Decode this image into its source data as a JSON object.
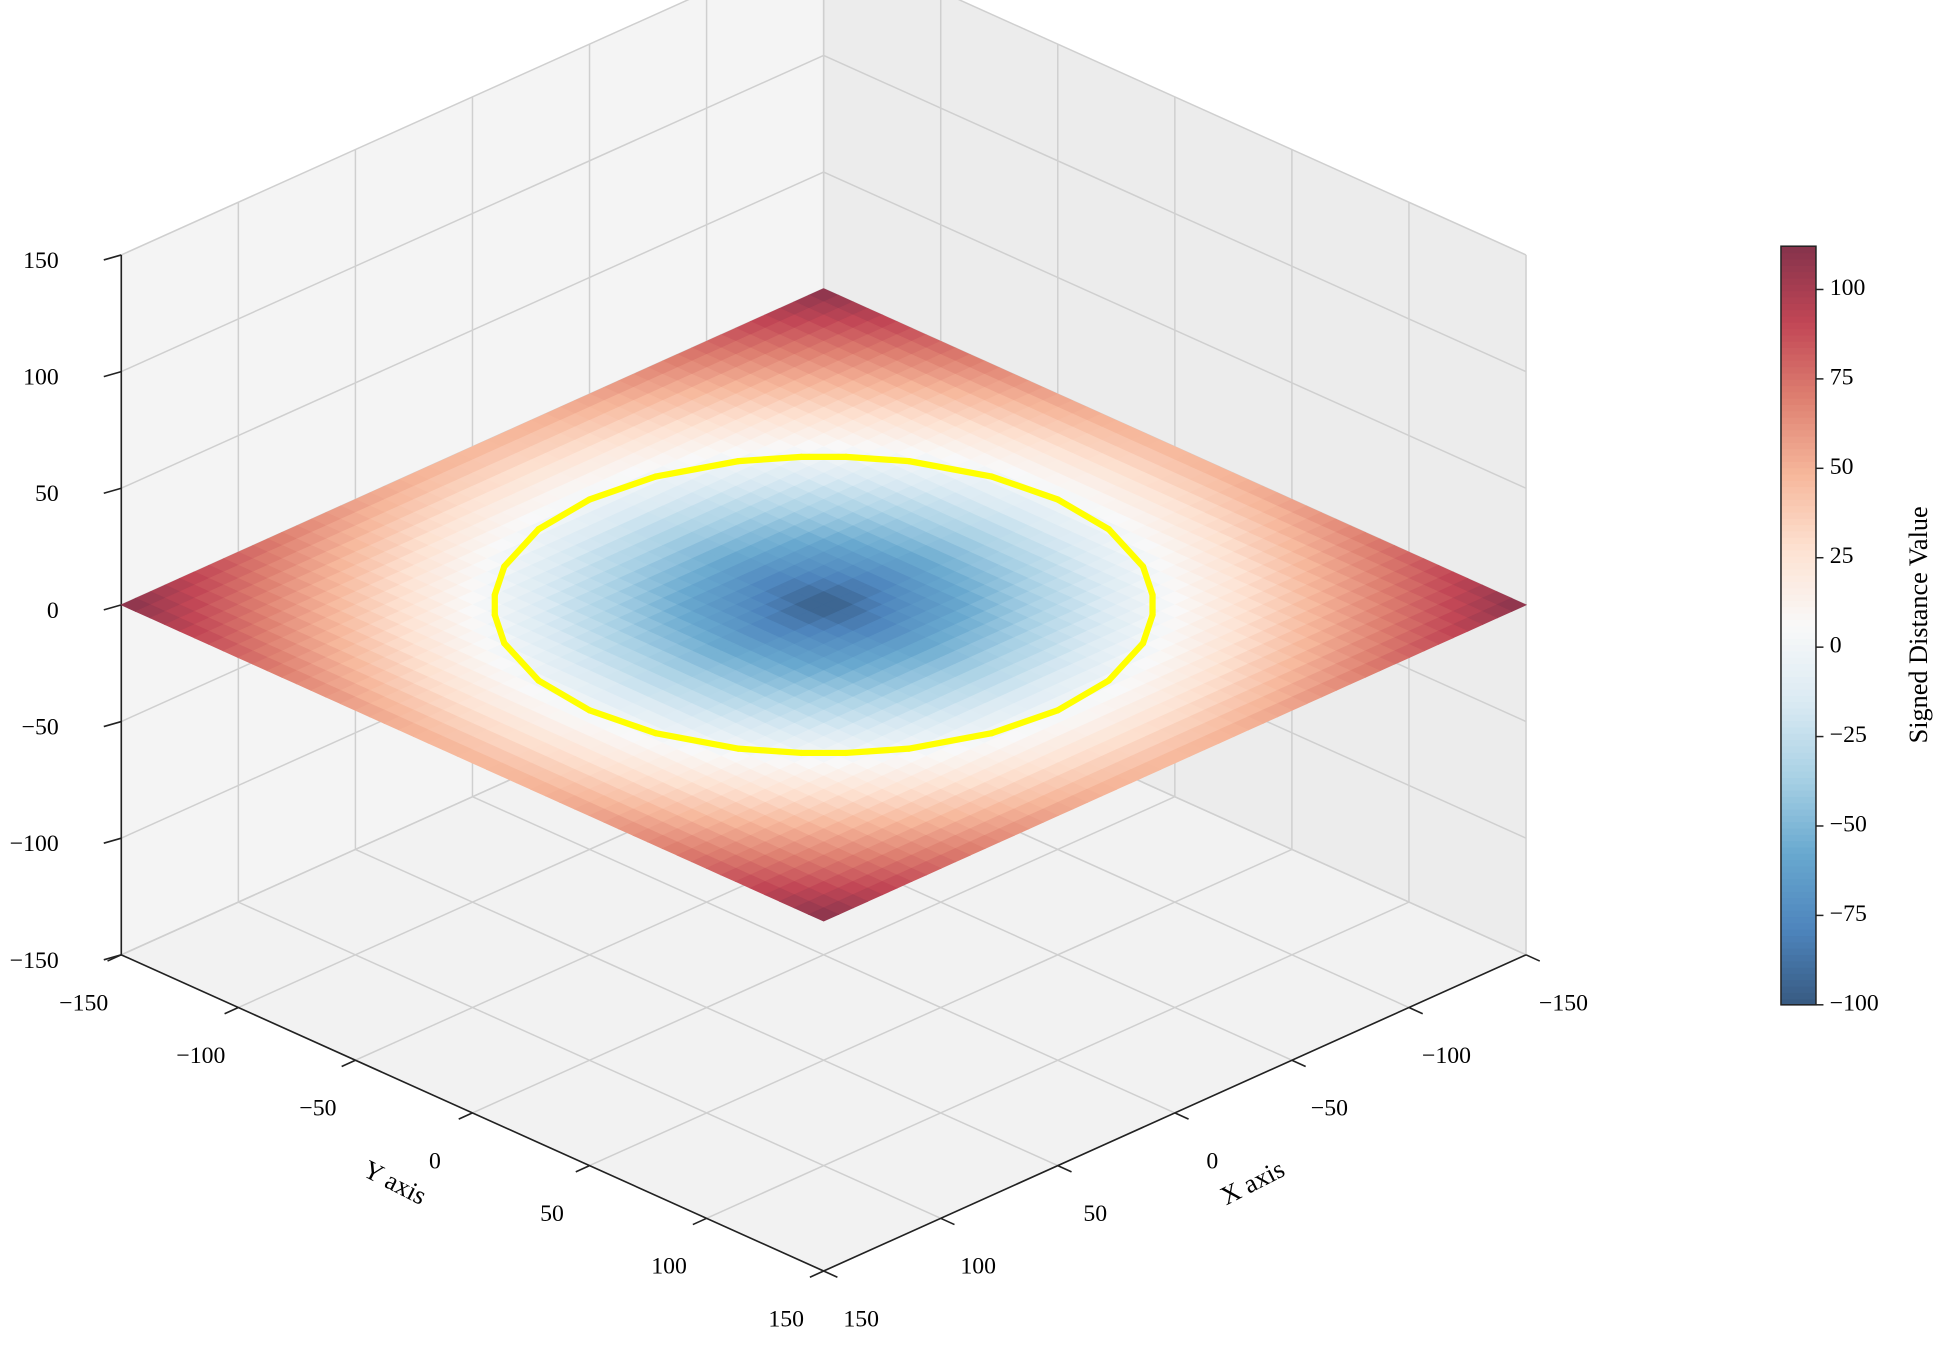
{
  "chart_data": {
    "type": "surface",
    "xlabel": "X axis",
    "ylabel": "Y axis",
    "colorbar_label": "Signed Distance Value",
    "xlim": [
      -150,
      150
    ],
    "ylim": [
      -150,
      150
    ],
    "zlim": [
      -150,
      150
    ],
    "xticks": [
      {
        "value": -150,
        "label": "−150"
      },
      {
        "value": -100,
        "label": "−100"
      },
      {
        "value": -50,
        "label": "−50"
      },
      0,
      50,
      100,
      150
    ],
    "yticks": [
      {
        "value": -150,
        "label": "−150"
      },
      {
        "value": -100,
        "label": "−100"
      },
      {
        "value": -50,
        "label": "−50"
      },
      0,
      50,
      100,
      150
    ],
    "zticks": [
      {
        "value": -150,
        "label": "−150"
      },
      {
        "value": -100,
        "label": "−100"
      },
      {
        "value": -50,
        "label": "−50"
      },
      0,
      50,
      100,
      150
    ],
    "grid": true,
    "surface": {
      "z": 0,
      "x": [
        -150,
        -125,
        -100,
        -75,
        -50,
        -25,
        0,
        25,
        50,
        75,
        100,
        125,
        150
      ],
      "y": [
        -150,
        -125,
        -100,
        -75,
        -50,
        -25,
        0,
        25,
        50,
        75,
        100,
        125,
        150
      ],
      "values": [
        [
          112.1,
          95.3,
          80.3,
          67.7,
          58.1,
          52.1,
          50,
          52.1,
          58.1,
          67.7,
          80.3,
          95.3,
          112.1
        ],
        [
          95.3,
          76.8,
          60.1,
          45.8,
          34.6,
          27.5,
          25,
          27.5,
          34.6,
          45.8,
          60.1,
          76.8,
          95.3
        ],
        [
          80.3,
          60.1,
          41.4,
          25,
          11.8,
          3.1,
          0,
          3.1,
          11.8,
          25,
          41.4,
          60.1,
          80.3
        ],
        [
          67.7,
          45.8,
          25,
          6.1,
          -9.9,
          -20.9,
          -25,
          -20.9,
          -9.9,
          6.1,
          25,
          45.8,
          67.7
        ],
        [
          58.1,
          34.6,
          11.8,
          -9.9,
          -29.3,
          -44.1,
          -50,
          -44.1,
          -29.3,
          -9.9,
          11.8,
          34.6,
          58.1
        ],
        [
          52.1,
          27.5,
          3.1,
          -20.9,
          -44.1,
          -64.6,
          -75,
          -64.6,
          -44.1,
          -20.9,
          3.1,
          27.5,
          52.1
        ],
        [
          50,
          25,
          0,
          -25,
          -50,
          -75,
          -100,
          -75,
          -50,
          -25,
          0,
          25,
          50
        ],
        [
          52.1,
          27.5,
          3.1,
          -20.9,
          -44.1,
          -64.6,
          -75,
          -64.6,
          -44.1,
          -20.9,
          3.1,
          27.5,
          52.1
        ],
        [
          58.1,
          34.6,
          11.8,
          -9.9,
          -29.3,
          -44.1,
          -50,
          -44.1,
          -29.3,
          -9.9,
          11.8,
          34.6,
          58.1
        ],
        [
          67.7,
          45.8,
          25,
          6.1,
          -9.9,
          -20.9,
          -25,
          -20.9,
          -9.9,
          6.1,
          25,
          45.8,
          67.7
        ],
        [
          80.3,
          60.1,
          41.4,
          25,
          11.8,
          3.1,
          0,
          3.1,
          11.8,
          25,
          41.4,
          60.1,
          80.3
        ],
        [
          95.3,
          76.8,
          60.1,
          45.8,
          34.6,
          27.5,
          25,
          27.5,
          34.6,
          45.8,
          60.1,
          76.8,
          95.3
        ],
        [
          112.1,
          95.3,
          80.3,
          67.7,
          58.1,
          52.1,
          50,
          52.1,
          58.1,
          67.7,
          80.3,
          95.3,
          112.1
        ]
      ],
      "colormap": "RdBu_r",
      "alpha": 0.8,
      "clim": [
        -100,
        112.1
      ]
    },
    "colorbar_ticks": [
      {
        "value": -100,
        "label": "−100"
      },
      {
        "value": -75,
        "label": "−75"
      },
      {
        "value": -50,
        "label": "−50"
      },
      {
        "value": -25,
        "label": "−25"
      },
      0,
      25,
      50,
      75,
      100
    ],
    "sphere": {
      "radius": 100,
      "color": "#8fe3e6",
      "alpha": 0.45,
      "line_color": "#ffff00"
    },
    "zero_contour": {
      "level": 0,
      "color": "#ffff00"
    }
  }
}
